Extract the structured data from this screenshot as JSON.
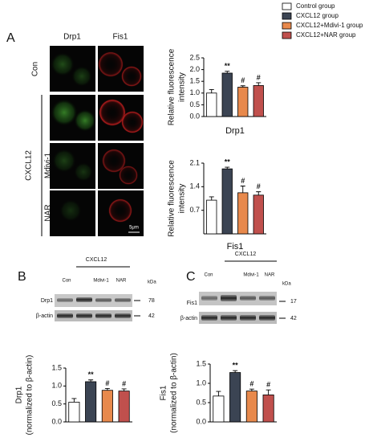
{
  "legend": {
    "names": [
      "Control group",
      "CXCL12 group",
      "CXCL12+Mdivi-1 group",
      "CXCL12+NAR group"
    ],
    "colors": [
      "#ffffff",
      "#3b4453",
      "#e8894c",
      "#c0504d"
    ]
  },
  "figure": {
    "panel_a": "A",
    "panel_b": "B",
    "panel_c": "C",
    "micro_cols": [
      "Drp1",
      "Fis1"
    ],
    "micro_con": "Con",
    "micro_group": "CXCL12",
    "micro_rows": [
      "Mdivi-1",
      "NAR"
    ],
    "scale": "5μm",
    "blot_b": {
      "group": "CXCL12",
      "lanes": [
        "Con",
        "Mdivi-1",
        "NAR"
      ],
      "kda": "kDa",
      "proteins": [
        "Drp1",
        "β-actin"
      ],
      "sizes": [
        "78",
        "42"
      ]
    },
    "blot_c": {
      "group": "CXCL12",
      "lanes": [
        "Con",
        "Mdivi-1",
        "NAR"
      ],
      "kda": "kDa",
      "proteins": [
        "Fis1",
        "β-actin"
      ],
      "sizes": [
        "17",
        "42"
      ]
    }
  },
  "chart_data": [
    {
      "type": "bar",
      "ylabel": [
        "Relative fluorescence",
        "intensity"
      ],
      "xlabel": "Drp1",
      "categories": [
        null,
        null,
        null,
        null
      ],
      "values": [
        1.0,
        1.85,
        1.25,
        1.32
      ],
      "errors": [
        0.15,
        0.08,
        0.06,
        0.12
      ],
      "annotations": [
        null,
        "**",
        "#",
        "#"
      ],
      "ylim": [
        0,
        2.5
      ],
      "yticks": [
        {
          "value": 0,
          "label": "0.0"
        },
        0.5,
        {
          "value": 1,
          "label": "1.0"
        },
        1.5,
        {
          "value": 2,
          "label": "2.0"
        },
        2.5
      ]
    },
    {
      "type": "bar",
      "ylabel": [
        "Relative fluorescence",
        "intensity"
      ],
      "xlabel": "Fis1",
      "categories": [
        null,
        null,
        null,
        null
      ],
      "values": [
        1.0,
        1.93,
        1.22,
        1.15
      ],
      "errors": [
        0.1,
        0.05,
        0.2,
        0.1
      ],
      "annotations": [
        null,
        "**",
        "#",
        "#"
      ],
      "ylim": [
        0,
        2.1
      ],
      "yticks": [
        0.7,
        1.4,
        2.1
      ]
    },
    {
      "type": "bar",
      "ylabel": [
        "Drp1",
        "(normalized to β-actin)"
      ],
      "categories": [
        null,
        null,
        null,
        null
      ],
      "values": [
        0.55,
        1.12,
        0.88,
        0.86
      ],
      "errors": [
        0.1,
        0.05,
        0.05,
        0.06
      ],
      "annotations": [
        null,
        "**",
        "#",
        "#"
      ],
      "ylim": [
        0,
        1.5
      ],
      "yticks": [
        {
          "value": 0,
          "label": "0.0"
        },
        0.5,
        {
          "value": 1,
          "label": "1.0"
        },
        1.5
      ]
    },
    {
      "type": "bar",
      "ylabel": [
        "Fis1",
        "(normalized to β-actin)"
      ],
      "categories": [
        null,
        null,
        null,
        null
      ],
      "values": [
        0.67,
        1.28,
        0.8,
        0.7
      ],
      "errors": [
        0.12,
        0.05,
        0.05,
        0.13
      ],
      "annotations": [
        null,
        "**",
        "#",
        "#"
      ],
      "ylim": [
        0,
        1.5
      ],
      "yticks": [
        {
          "value": 0,
          "label": "0.0"
        },
        0.5,
        {
          "value": 1,
          "label": "1.0"
        },
        1.5
      ]
    }
  ]
}
